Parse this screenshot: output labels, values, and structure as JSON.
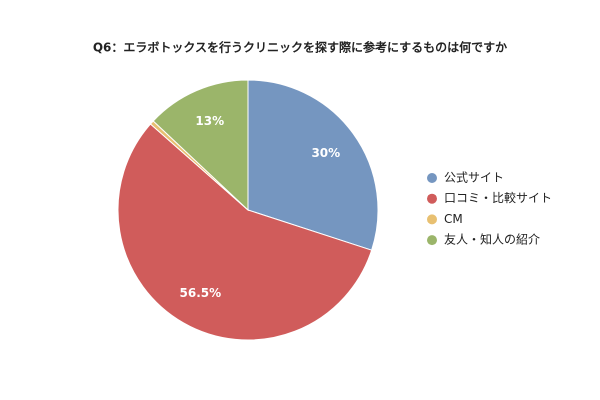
{
  "chart_data": {
    "type": "pie",
    "title": "Q6：エラボトックスを行うクリニックを探す際に参考にするものは何ですか",
    "categories": [
      "公式サイト",
      "口コミ・比較サイト",
      "CM",
      "友人・知人の紹介"
    ],
    "values": [
      30,
      56.5,
      0.5,
      13
    ],
    "value_labels": [
      "30%",
      "56.5%",
      null,
      "13%"
    ],
    "colors": [
      "#7596c0",
      "#d05c5b",
      "#e8c071",
      "#9bb56a"
    ],
    "legend": "right"
  }
}
